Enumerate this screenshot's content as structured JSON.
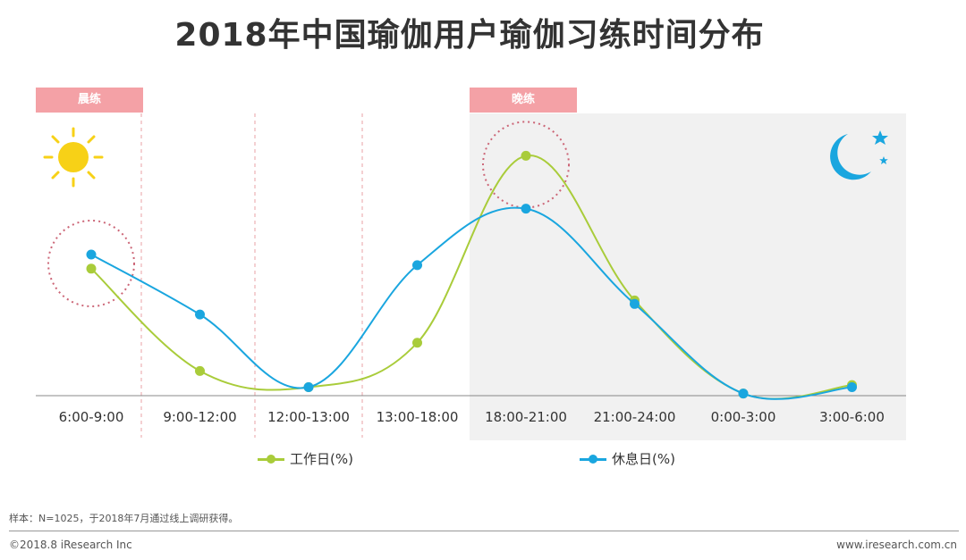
{
  "header": {
    "title": "2018年中国瑜伽用户瑜伽习练时间分布"
  },
  "tags": {
    "morning": "晨练",
    "evening": "晚练"
  },
  "colors": {
    "work": "#a9cc3a",
    "rest": "#1aa6df",
    "tag": "#f4a1a6",
    "night_bg": "#f1f1f1",
    "highlight": "#cc6677"
  },
  "chart_data": {
    "type": "line",
    "title": "2018年中国瑜伽用户瑜伽习练时间分布",
    "categories": [
      "6:00-9:00",
      "9:00-12:00",
      "12:00-13:00",
      "13:00-18:00",
      "18:00-21:00",
      "21:00-24:00",
      "0:00-3:00",
      "3:00-6:00"
    ],
    "series": [
      {
        "name": "工作日(%)",
        "values": [
          18.0,
          3.5,
          1.2,
          7.5,
          34.0,
          13.5,
          0.3,
          1.5
        ]
      },
      {
        "name": "休息日(%)",
        "values": [
          20.0,
          11.5,
          1.2,
          18.5,
          26.5,
          13.0,
          0.3,
          1.2
        ]
      }
    ],
    "ylim": [
      0,
      40
    ],
    "grid": false,
    "legend_position": "bottom",
    "highlights": [
      "6:00-9:00",
      "18:00-21:00"
    ]
  },
  "legend": {
    "work": "工作日(%)",
    "rest": "休息日(%)"
  },
  "footer": {
    "note": "样本：N=1025，于2018年7月通过线上调研获得。",
    "copyright": "©2018.8 iResearch Inc",
    "website": "www.iresearch.com.cn"
  }
}
